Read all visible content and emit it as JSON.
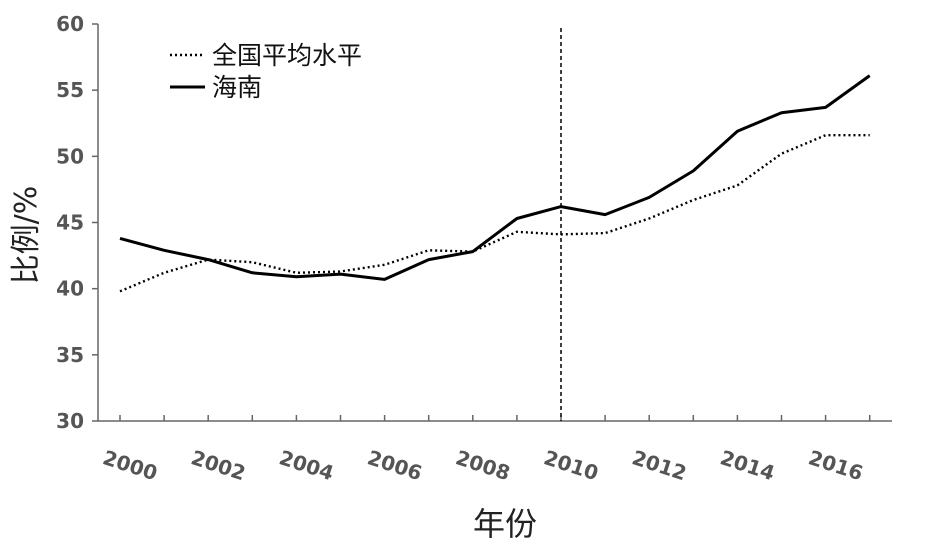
{
  "chart_data": {
    "type": "line",
    "xlabel": "年份",
    "ylabel": "比例/%",
    "xlim": [
      2000,
      2017
    ],
    "ylim": [
      30,
      60
    ],
    "x_ticks": [
      2000,
      2002,
      2004,
      2006,
      2008,
      2010,
      2012,
      2014,
      2016
    ],
    "x_tick_labels": [
      "2000",
      "2002",
      "2004",
      "2006",
      "2008",
      "2010",
      "2012",
      "2014",
      "2016"
    ],
    "y_ticks": [
      30,
      35,
      40,
      45,
      50,
      55,
      60
    ],
    "y_tick_labels": [
      "30",
      "35",
      "40",
      "45",
      "50",
      "55",
      "60"
    ],
    "grid": false,
    "legend_position": "top-left",
    "reference_line_x": 2010,
    "x": [
      2000,
      2001,
      2002,
      2003,
      2004,
      2005,
      2006,
      2007,
      2008,
      2009,
      2010,
      2011,
      2012,
      2013,
      2014,
      2015,
      2016,
      2017
    ],
    "series": [
      {
        "name": "全国平均水平",
        "style": "dotted",
        "values": [
          39.8,
          41.2,
          42.2,
          42.0,
          41.2,
          41.3,
          41.8,
          42.9,
          42.8,
          44.3,
          44.1,
          44.2,
          45.3,
          46.7,
          47.8,
          50.2,
          51.6,
          51.6
        ]
      },
      {
        "name": "海南",
        "style": "solid",
        "values": [
          43.8,
          42.9,
          42.2,
          41.2,
          40.9,
          41.1,
          40.7,
          42.2,
          42.8,
          45.3,
          46.2,
          45.6,
          46.9,
          48.9,
          51.9,
          53.3,
          53.7,
          56.1
        ]
      }
    ],
    "colors": {
      "axis": "#666666",
      "line": "#000000"
    }
  }
}
